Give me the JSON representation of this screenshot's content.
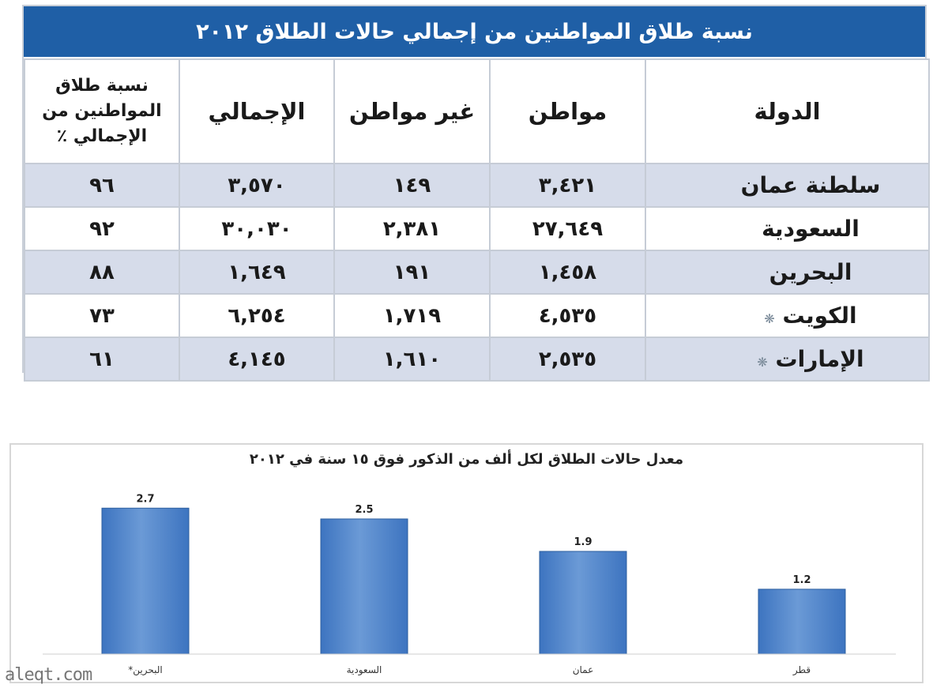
{
  "table": {
    "title": "نسبة طلاق المواطنين من إجمالي حالات الطلاق ٢٠١٢",
    "headers": {
      "country": "الدولة",
      "citizen": "مواطن",
      "non_citizen": "غير مواطن",
      "total": "الإجمالي",
      "ratio": "نسبة طلاق المواطنين من الإجمالي ٪"
    },
    "rows": [
      {
        "country": "سلطنة عمان",
        "star": "",
        "citizen": "٣,٤٢١",
        "non_citizen": "١٤٩",
        "total": "٣,٥٧٠",
        "ratio": "٩٦"
      },
      {
        "country": "السعودية",
        "star": "",
        "citizen": "٢٧,٦٤٩",
        "non_citizen": "٢,٣٨١",
        "total": "٣٠,٠٣٠",
        "ratio": "٩٢"
      },
      {
        "country": "البحرين",
        "star": "",
        "citizen": "١,٤٥٨",
        "non_citizen": "١٩١",
        "total": "١,٦٤٩",
        "ratio": "٨٨"
      },
      {
        "country": "الكويت",
        "star": "❋",
        "citizen": "٤,٥٣٥",
        "non_citizen": "١,٧١٩",
        "total": "٦,٢٥٤",
        "ratio": "٧٣"
      },
      {
        "country": "الإمارات",
        "star": "❋",
        "citizen": "٢,٥٣٥",
        "non_citizen": "١,٦١٠",
        "total": "٤,١٤٥",
        "ratio": "٦١"
      }
    ]
  },
  "chart_data": {
    "type": "bar",
    "title": "معدل حالات الطلاق لكل ألف من الذكور فوق ١٥ سنة في ٢٠١٢",
    "categories": [
      "البحرين*",
      "السعودية",
      "عمان",
      "قطر"
    ],
    "values": [
      2.7,
      2.5,
      1.9,
      1.2
    ],
    "value_labels": [
      "2.7",
      "2.5",
      "1.9",
      "1.2"
    ],
    "ylim": [
      0,
      2.85
    ],
    "grid": false,
    "legend": "none",
    "bar_color": "#3d74c0",
    "bar_color_light": "#6b9ad6"
  },
  "watermark": "aleqt.com",
  "colors": {
    "header_blue": "#1f5fa6",
    "row_shade": "#d6dcea"
  }
}
